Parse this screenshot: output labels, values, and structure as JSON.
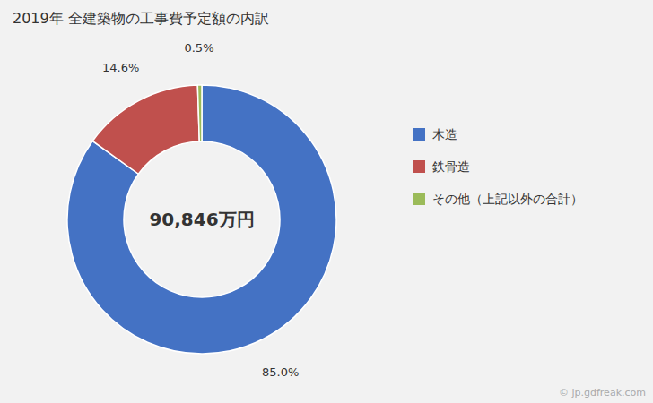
{
  "chart_data": {
    "type": "donut",
    "title": "2019年 全建築物の工事費予定額の内訳",
    "categories": [
      "木造",
      "鉄骨造",
      "その他（上記以外の合計）"
    ],
    "values": [
      85.0,
      14.6,
      0.5
    ],
    "value_labels": [
      "85.0%",
      "14.6%",
      "0.5%"
    ],
    "data_labels": true,
    "colors": [
      "#4472c4",
      "#c0504d",
      "#9bbb59"
    ],
    "legend": "right",
    "annotations": [
      "90,846万円",
      "© jp.gdfreak.com"
    ]
  }
}
